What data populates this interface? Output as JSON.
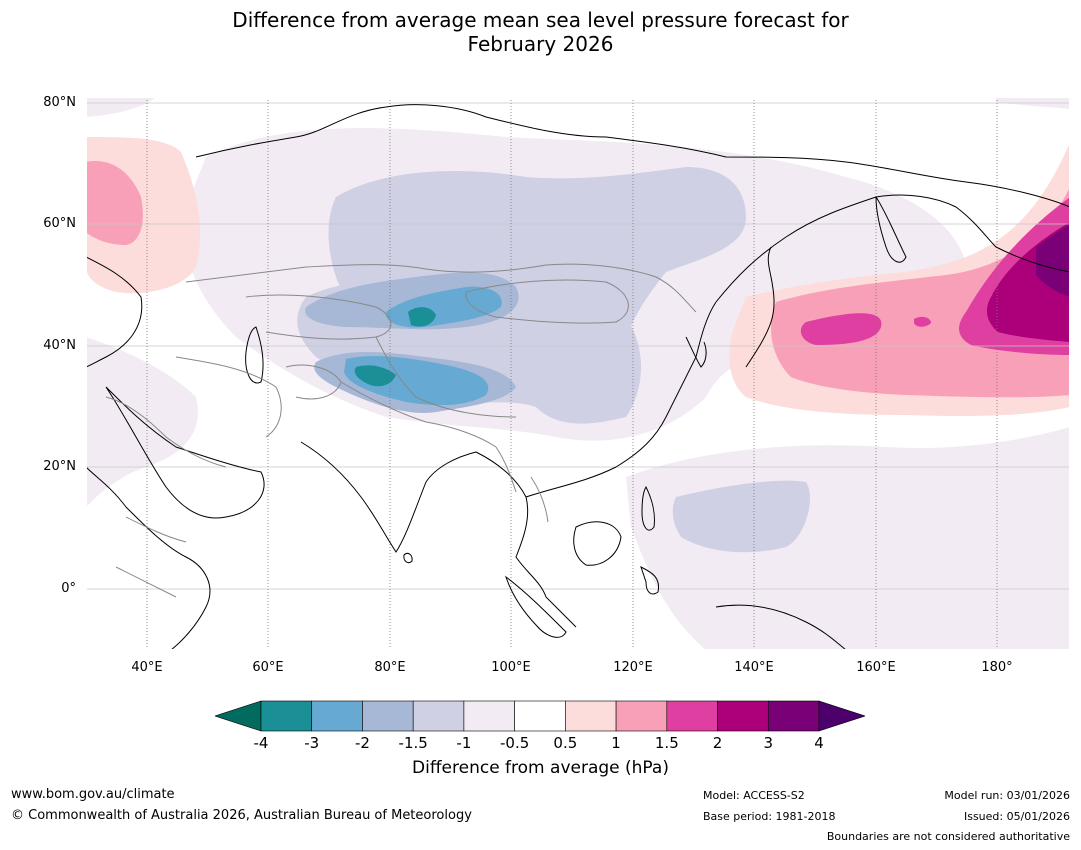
{
  "title_line1": "Difference from average mean sea level pressure forecast for",
  "title_line2": "February 2026",
  "map": {
    "lat_labels": [
      "80°N",
      "60°N",
      "40°N",
      "20°N",
      "0°"
    ],
    "lon_labels": [
      "40°E",
      "60°E",
      "80°E",
      "100°E",
      "120°E",
      "140°E",
      "160°E",
      "180°"
    ],
    "lon_range": [
      30,
      192
    ],
    "lat_range": [
      -10,
      81
    ]
  },
  "colorbar": {
    "ticks": [
      "-4",
      "-3",
      "-2",
      "-1.5",
      "-1",
      "-0.5",
      "0.5",
      "1",
      "1.5",
      "2",
      "3",
      "4"
    ],
    "colors": [
      "#1b8f96",
      "#66a9d2",
      "#a6b8d6",
      "#cfd0e4",
      "#f2ebf4",
      "#ffffff",
      "#fddcdc",
      "#f8a0b8",
      "#de3fa0",
      "#ac007a",
      "#7a0078"
    ],
    "under_color": "#006b5e",
    "over_color": "#4b006b",
    "label": "Difference from average (hPa)"
  },
  "footer": {
    "website": "www.bom.gov.au/climate",
    "copyright": "© Commonwealth of Australia 2026, Australian Bureau of Meteorology",
    "model": "Model: ACCESS-S2",
    "base_period": "Base period: 1981-2018",
    "model_run": "Model run: 03/01/2026",
    "issued": "Issued: 05/01/2026",
    "disclaimer": "Boundaries are not considered authoritative"
  }
}
